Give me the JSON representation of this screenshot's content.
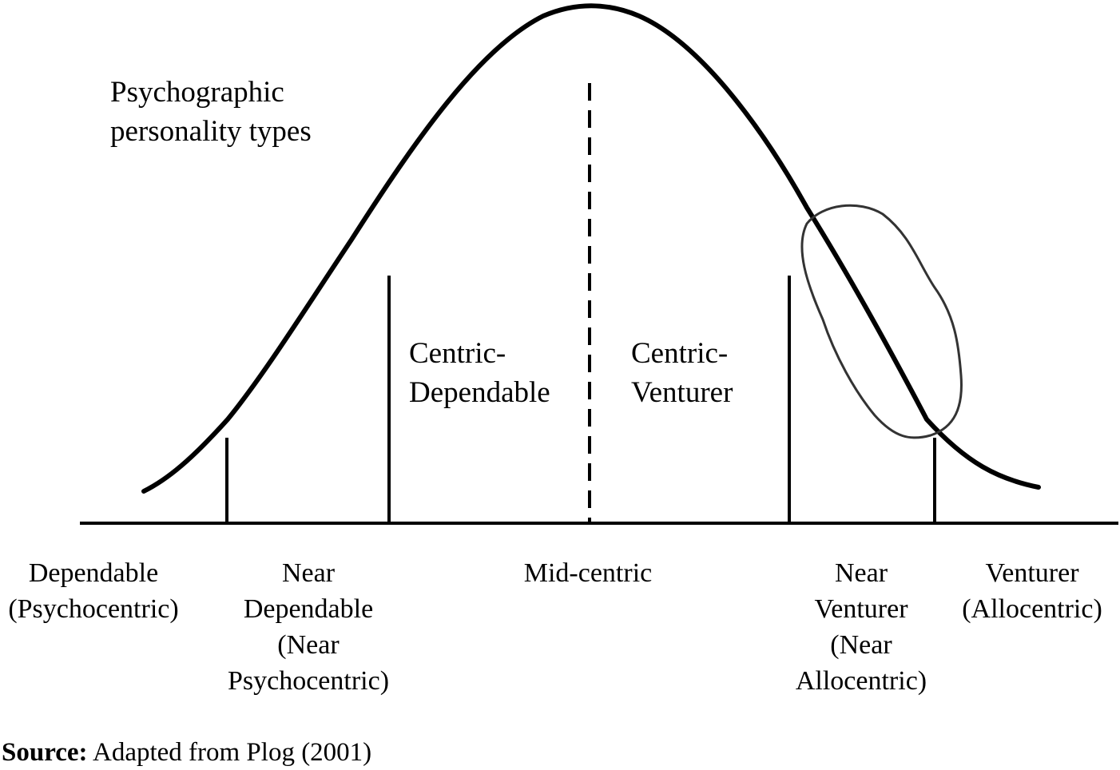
{
  "title_lines": [
    "Psychographic",
    "personality types"
  ],
  "regions": [
    {
      "key": "centric_dependable",
      "lines": [
        "Centric-",
        "Dependable"
      ]
    },
    {
      "key": "centric_venturer",
      "lines": [
        "Centric-",
        "Venturer"
      ]
    }
  ],
  "axis_labels": [
    {
      "key": "dependable",
      "lines": [
        "Dependable",
        "(Psychocentric)"
      ]
    },
    {
      "key": "near_dependable",
      "lines": [
        "Near",
        "Dependable",
        "(Near",
        "Psychocentric)"
      ]
    },
    {
      "key": "mid_centric",
      "lines": [
        "Mid-centric"
      ]
    },
    {
      "key": "near_venturer",
      "lines": [
        "Near",
        "Venturer",
        "(Near",
        "Allocentric)"
      ]
    },
    {
      "key": "venturer",
      "lines": [
        "Venturer",
        "(Allocentric)"
      ]
    }
  ],
  "source": {
    "label": "Source:",
    "text": "Adapted from Plog (2001)"
  },
  "colors": {
    "line": "#000000",
    "highlight_loop": "#333333"
  }
}
